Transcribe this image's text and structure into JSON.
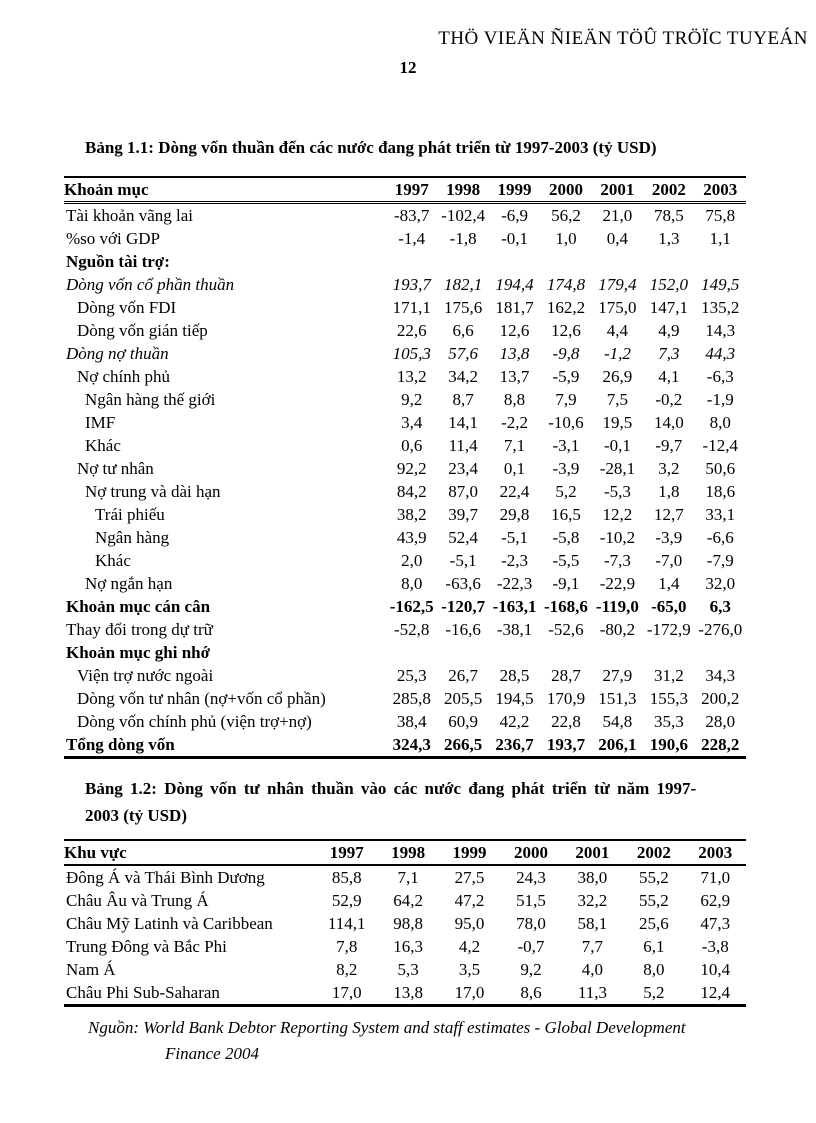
{
  "page": {
    "watermark": "THÖ VIEÄN ÑIEÄN TÖÛ TRÖÏC TUYEÁN",
    "page_number": "12"
  },
  "table1": {
    "title": "Bảng 1.1: Dòng vốn thuần đến các nước đang phát triển từ 1997-2003 (tỷ USD)",
    "header": [
      "Khoản mục",
      "1997",
      "1998",
      "1999",
      "2000",
      "2001",
      "2002",
      "2003"
    ],
    "rows": [
      {
        "label": "Tài khoản vãng lai",
        "indent": 0,
        "style": "",
        "values": [
          "-83,7",
          "-102,4",
          "-6,9",
          "56,2",
          "21,0",
          "78,5",
          "75,8"
        ]
      },
      {
        "label": "%so với GDP",
        "indent": 0,
        "style": "",
        "values": [
          "-1,4",
          "-1,8",
          "-0,1",
          "1,0",
          "0,4",
          "1,3",
          "1,1"
        ]
      },
      {
        "label": "Nguồn tài trợ:",
        "indent": 0,
        "style": "bold",
        "values": [
          "",
          "",
          "",
          "",
          "",
          "",
          ""
        ]
      },
      {
        "label": "Dòng vốn cổ phần thuần",
        "indent": 0,
        "style": "italic",
        "values": [
          "193,7",
          "182,1",
          "194,4",
          "174,8",
          "179,4",
          "152,0",
          "149,5"
        ]
      },
      {
        "label": "Dòng vốn FDI",
        "indent": 1,
        "style": "",
        "values": [
          "171,1",
          "175,6",
          "181,7",
          "162,2",
          "175,0",
          "147,1",
          "135,2"
        ]
      },
      {
        "label": "Dòng vốn gián tiếp",
        "indent": 1,
        "style": "",
        "values": [
          "22,6",
          "6,6",
          "12,6",
          "12,6",
          "4,4",
          "4,9",
          "14,3"
        ]
      },
      {
        "label": "Dòng nợ thuần",
        "indent": 0,
        "style": "italic",
        "values": [
          "105,3",
          "57,6",
          "13,8",
          "-9,8",
          "-1,2",
          "7,3",
          "44,3"
        ]
      },
      {
        "label": "Nợ chính phủ",
        "indent": 1,
        "style": "",
        "values": [
          "13,2",
          "34,2",
          "13,7",
          "-5,9",
          "26,9",
          "4,1",
          "-6,3"
        ]
      },
      {
        "label": "Ngân hàng thế giới",
        "indent": 2,
        "style": "",
        "values": [
          "9,2",
          "8,7",
          "8,8",
          "7,9",
          "7,5",
          "-0,2",
          "-1,9"
        ]
      },
      {
        "label": "IMF",
        "indent": 2,
        "style": "",
        "values": [
          "3,4",
          "14,1",
          "-2,2",
          "-10,6",
          "19,5",
          "14,0",
          "8,0"
        ]
      },
      {
        "label": "Khác",
        "indent": 2,
        "style": "",
        "values": [
          "0,6",
          "11,4",
          "7,1",
          "-3,1",
          "-0,1",
          "-9,7",
          "-12,4"
        ]
      },
      {
        "label": "Nợ tư nhân",
        "indent": 1,
        "style": "",
        "values": [
          "92,2",
          "23,4",
          "0,1",
          "-3,9",
          "-28,1",
          "3,2",
          "50,6"
        ]
      },
      {
        "label": "Nợ trung và dài hạn",
        "indent": 2,
        "style": "",
        "values": [
          "84,2",
          "87,0",
          "22,4",
          "5,2",
          "-5,3",
          "1,8",
          "18,6"
        ]
      },
      {
        "label": "Trái phiếu",
        "indent": 3,
        "style": "",
        "values": [
          "38,2",
          "39,7",
          "29,8",
          "16,5",
          "12,2",
          "12,7",
          "33,1"
        ]
      },
      {
        "label": "Ngân hàng",
        "indent": 3,
        "style": "",
        "values": [
          "43,9",
          "52,4",
          "-5,1",
          "-5,8",
          "-10,2",
          "-3,9",
          "-6,6"
        ]
      },
      {
        "label": "Khác",
        "indent": 3,
        "style": "",
        "values": [
          "2,0",
          "-5,1",
          "-2,3",
          "-5,5",
          "-7,3",
          "-7,0",
          "-7,9"
        ]
      },
      {
        "label": "Nợ ngắn hạn",
        "indent": 2,
        "style": "",
        "values": [
          "8,0",
          "-63,6",
          "-22,3",
          "-9,1",
          "-22,9",
          "1,4",
          "32,0"
        ]
      },
      {
        "label": "Khoản mục cán cân",
        "indent": 0,
        "style": "bold",
        "values": [
          "-162,5",
          "-120,7",
          "-163,1",
          "-168,6",
          "-119,0",
          "-65,0",
          "6,3"
        ]
      },
      {
        "label": "Thay đổi trong dự trữ",
        "indent": 0,
        "style": "",
        "values": [
          "-52,8",
          "-16,6",
          "-38,1",
          "-52,6",
          "-80,2",
          "-172,9",
          "-276,0"
        ]
      },
      {
        "label": "Khoản mục ghi nhớ",
        "indent": 0,
        "style": "bold",
        "values": [
          "",
          "",
          "",
          "",
          "",
          "",
          ""
        ]
      },
      {
        "label": "Viện trợ nước ngoài",
        "indent": 1,
        "style": "",
        "values": [
          "25,3",
          "26,7",
          "28,5",
          "28,7",
          "27,9",
          "31,2",
          "34,3"
        ]
      },
      {
        "label": "Dòng vốn tư nhân (nợ+vốn cổ phần)",
        "indent": 1,
        "style": "",
        "values": [
          "285,8",
          "205,5",
          "194,5",
          "170,9",
          "151,3",
          "155,3",
          "200,2"
        ]
      },
      {
        "label": "Dòng vốn chính phủ (viện trợ+nợ)",
        "indent": 1,
        "style": "",
        "values": [
          "38,4",
          "60,9",
          "42,2",
          "22,8",
          "54,8",
          "35,3",
          "28,0"
        ]
      },
      {
        "label": "Tổng dòng vốn",
        "indent": 0,
        "style": "bold",
        "values": [
          "324,3",
          "266,5",
          "236,7",
          "193,7",
          "206,1",
          "190,6",
          "228,2"
        ]
      }
    ]
  },
  "table2": {
    "title_line1": "Bảng 1.2: Dòng vốn tư nhân thuần vào các nước đang phát triển từ năm 1997-",
    "title_line2": "2003 (tỷ USD)",
    "header": [
      "Khu vực",
      "1997",
      "1998",
      "1999",
      "2000",
      "2001",
      "2002",
      "2003"
    ],
    "rows": [
      {
        "label": "Đông Á và Thái Bình Dương",
        "indent": 0,
        "style": "",
        "values": [
          "85,8",
          "7,1",
          "27,5",
          "24,3",
          "38,0",
          "55,2",
          "71,0"
        ]
      },
      {
        "label": "Châu Âu và Trung Á",
        "indent": 0,
        "style": "",
        "values": [
          "52,9",
          "64,2",
          "47,2",
          "51,5",
          "32,2",
          "55,2",
          "62,9"
        ]
      },
      {
        "label": "Châu Mỹ Latinh và Caribbean",
        "indent": 0,
        "style": "",
        "values": [
          "114,1",
          "98,8",
          "95,0",
          "78,0",
          "58,1",
          "25,6",
          "47,3"
        ]
      },
      {
        "label": "Trung Đông và Bắc Phi",
        "indent": 0,
        "style": "",
        "values": [
          "7,8",
          "16,3",
          "4,2",
          "-0,7",
          "7,7",
          "6,1",
          "-3,8"
        ]
      },
      {
        "label": "Nam Á",
        "indent": 0,
        "style": "",
        "values": [
          "8,2",
          "5,3",
          "3,5",
          "9,2",
          "4,0",
          "8,0",
          "10,4"
        ]
      },
      {
        "label": "Châu Phi Sub-Saharan",
        "indent": 0,
        "style": "",
        "values": [
          "17,0",
          "13,8",
          "17,0",
          "8,6",
          "11,3",
          "5,2",
          "12,4"
        ]
      }
    ]
  },
  "source": {
    "line1": "Nguồn: World Bank Debtor Reporting System and staff estimates - Global Development",
    "line2": "Finance 2004"
  }
}
